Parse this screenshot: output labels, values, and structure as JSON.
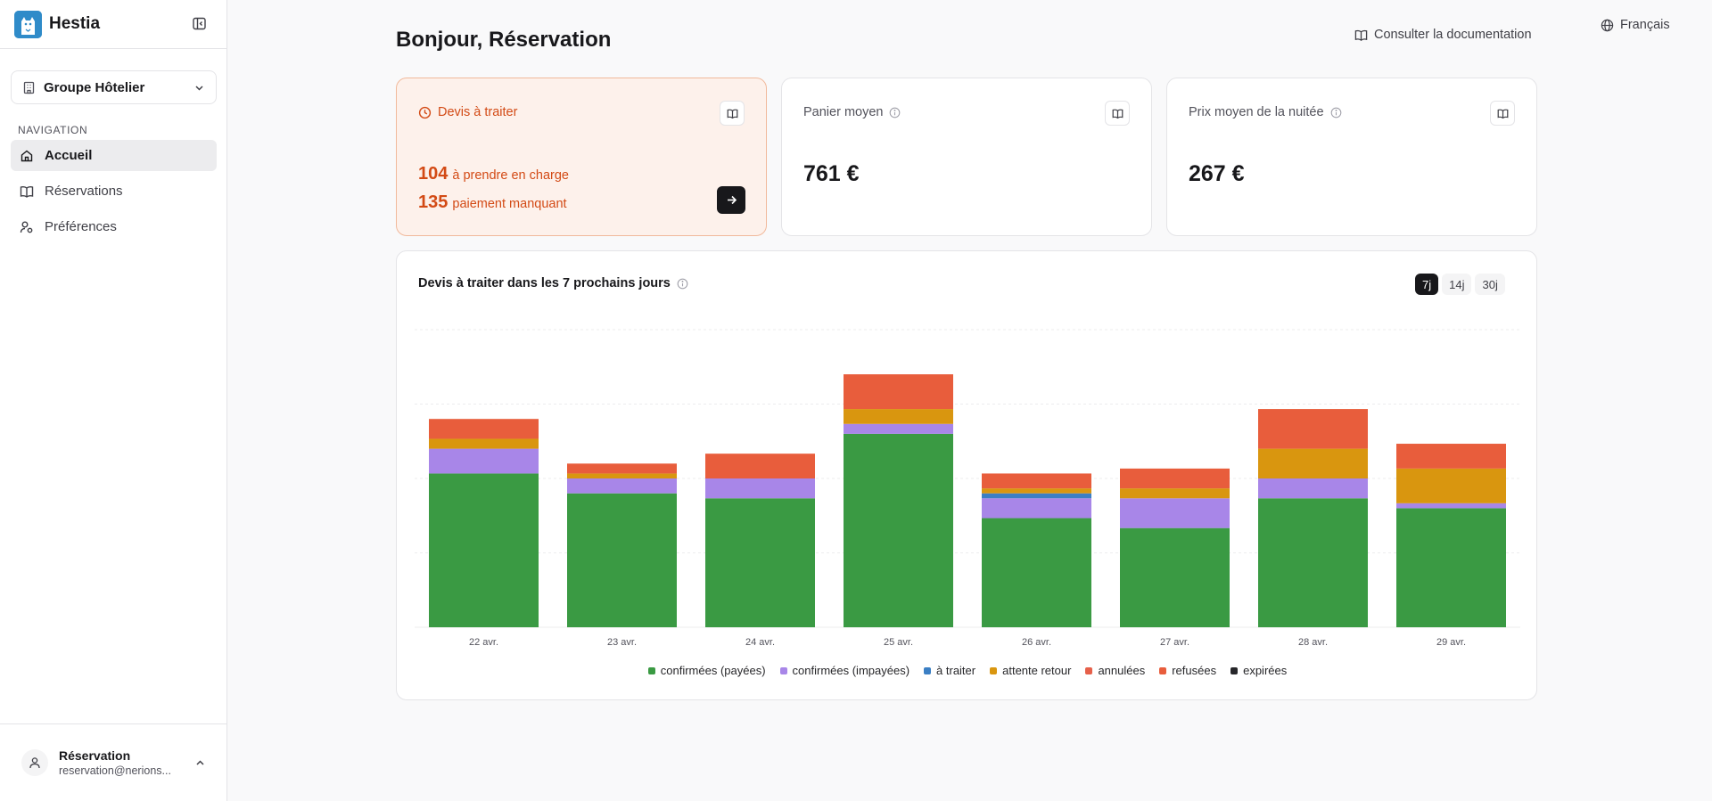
{
  "app": {
    "name": "Hestia"
  },
  "sidebar": {
    "group_label": "Groupe Hôtelier",
    "nav_heading": "NAVIGATION",
    "items": [
      {
        "label": "Accueil",
        "icon": "home-icon",
        "active": true
      },
      {
        "label": "Réservations",
        "icon": "book-icon",
        "active": false
      },
      {
        "label": "Préférences",
        "icon": "user-settings-icon",
        "active": false
      }
    ],
    "user": {
      "name": "Réservation",
      "email": "reservation@nerions..."
    }
  },
  "header": {
    "title": "Bonjour, Réservation",
    "doc_link": "Consulter la documentation",
    "language": "Français"
  },
  "cards": {
    "quotes": {
      "title": "Devis à traiter",
      "line1_num": "104",
      "line1_text": "à prendre en charge",
      "line2_num": "135",
      "line2_text": "paiement manquant"
    },
    "basket": {
      "title": "Panier moyen",
      "value": "761 €"
    },
    "night": {
      "title": "Prix moyen de la nuitée",
      "value": "267 €"
    }
  },
  "chart_section": {
    "title": "Devis à traiter dans les 7 prochains jours",
    "ranges": [
      {
        "label": "7j",
        "active": true
      },
      {
        "label": "14j",
        "active": false
      },
      {
        "label": "30j",
        "active": false
      }
    ]
  },
  "chart_data": {
    "type": "bar",
    "stacked": true,
    "categories": [
      "22 avr.",
      "23 avr.",
      "24 avr.",
      "25 avr.",
      "26 avr.",
      "27 avr.",
      "28 avr.",
      "29 avr."
    ],
    "ylim": [
      0,
      60
    ],
    "grid": true,
    "legend_position": "bottom",
    "series": [
      {
        "name": "confirmées (payées)",
        "color": "#3a9a43",
        "values": [
          31,
          27,
          26,
          39,
          22,
          20,
          26,
          24
        ]
      },
      {
        "name": "confirmées (impayées)",
        "color": "#a886e8",
        "values": [
          5,
          3,
          4,
          2,
          4,
          6,
          4,
          1
        ]
      },
      {
        "name": "à traiter",
        "color": "#3b7fc4",
        "values": [
          0,
          0,
          0,
          0,
          1,
          0,
          0,
          0
        ]
      },
      {
        "name": "attente retour",
        "color": "#d9960f",
        "values": [
          2,
          1,
          0,
          3,
          1,
          2,
          6,
          7
        ]
      },
      {
        "name": "annulées",
        "color": "#e6604a",
        "values": [
          0,
          0,
          0,
          0,
          0,
          0,
          0,
          0
        ]
      },
      {
        "name": "refusées",
        "color": "#e85d3c",
        "values": [
          4,
          2,
          5,
          7,
          3,
          4,
          8,
          5
        ]
      },
      {
        "name": "expirées",
        "color": "#27272a",
        "values": [
          0,
          0,
          0,
          0,
          0,
          0,
          0,
          0
        ]
      }
    ]
  }
}
